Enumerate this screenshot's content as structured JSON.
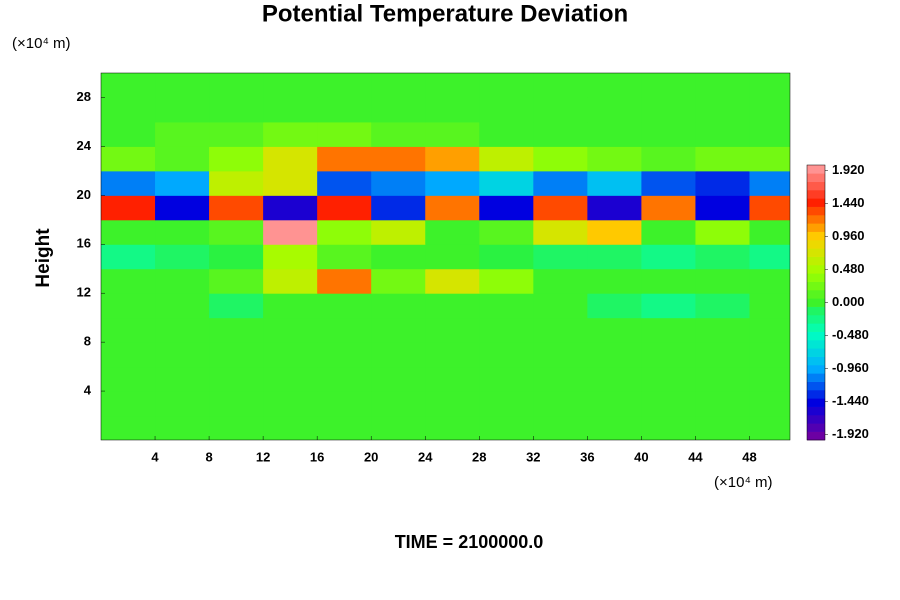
{
  "chart_data": {
    "type": "heatmap",
    "title": "Potential Temperature Deviation",
    "x_unit_label": "(×10⁴ m)",
    "y_unit_label": "(×10⁴ m)",
    "ylabel": "Height",
    "footer": "TIME = 2100000.0",
    "xlim": [
      0,
      51
    ],
    "ylim": [
      0,
      30
    ],
    "xticks": [
      4,
      8,
      12,
      16,
      20,
      24,
      28,
      32,
      36,
      40,
      44,
      48
    ],
    "yticks": [
      4,
      8,
      12,
      16,
      20,
      24,
      28
    ],
    "x": [
      2,
      6,
      10,
      14,
      18,
      22,
      26,
      30,
      34,
      38,
      42,
      46,
      50
    ],
    "y": [
      1,
      3,
      5,
      7,
      9,
      11,
      13,
      15,
      17,
      19,
      21,
      23,
      25,
      27,
      29
    ],
    "z": [
      [
        0.1,
        0.1,
        0.1,
        0.1,
        0.1,
        0.1,
        0.1,
        0.1,
        0.1,
        0.1,
        0.1,
        0.1,
        0.1
      ],
      [
        0.1,
        0.1,
        0.1,
        0.1,
        0.1,
        0.1,
        0.1,
        0.1,
        0.1,
        0.1,
        0.1,
        0.1,
        0.1
      ],
      [
        0.1,
        0.1,
        0.1,
        0.1,
        0.1,
        0.1,
        0.1,
        0.1,
        0.1,
        0.1,
        0.1,
        0.1,
        0.1
      ],
      [
        0.1,
        0.1,
        0.1,
        0.1,
        0.1,
        0.1,
        0.1,
        0.1,
        0.1,
        0.1,
        0.1,
        0.1,
        0.1
      ],
      [
        0.1,
        0.1,
        0.1,
        0.1,
        0.1,
        0.1,
        0.1,
        0.1,
        0.1,
        0.1,
        0.1,
        0.1,
        0.1
      ],
      [
        0.0,
        0.0,
        -0.2,
        0.0,
        0.0,
        0.0,
        0.0,
        0.0,
        0.0,
        -0.2,
        -0.3,
        -0.2,
        0.0
      ],
      [
        0.0,
        0.1,
        0.2,
        0.6,
        1.2,
        0.3,
        0.8,
        0.4,
        0.1,
        0.0,
        0.0,
        0.0,
        0.0
      ],
      [
        -0.3,
        -0.2,
        -0.1,
        0.5,
        0.2,
        0.1,
        0.0,
        -0.1,
        -0.2,
        -0.2,
        -0.3,
        -0.2,
        -0.3
      ],
      [
        0.0,
        0.0,
        0.2,
        2.0,
        0.4,
        0.6,
        0.1,
        0.2,
        0.8,
        1.0,
        0.1,
        0.4,
        0.0
      ],
      [
        1.5,
        -1.5,
        1.4,
        -1.6,
        1.5,
        -1.4,
        1.2,
        -1.5,
        1.4,
        -1.6,
        1.3,
        -1.5,
        1.4
      ],
      [
        -1.2,
        -1.0,
        0.6,
        0.8,
        -1.3,
        -1.2,
        -1.0,
        -0.8,
        -1.1,
        -0.9,
        -1.3,
        -1.4,
        -1.2
      ],
      [
        0.3,
        0.2,
        0.4,
        0.8,
        1.2,
        1.3,
        1.1,
        0.6,
        0.4,
        0.3,
        0.2,
        0.3,
        0.3
      ],
      [
        0.1,
        0.2,
        0.2,
        0.3,
        0.3,
        0.2,
        0.2,
        0.1,
        0.1,
        0.1,
        0.1,
        0.1,
        0.1
      ],
      [
        0.1,
        0.1,
        0.1,
        0.1,
        0.1,
        0.1,
        0.1,
        0.1,
        0.1,
        0.1,
        0.1,
        0.1,
        0.1
      ],
      [
        0.1,
        0.1,
        0.1,
        0.1,
        0.1,
        0.1,
        0.1,
        0.1,
        0.1,
        0.1,
        0.1,
        0.1,
        0.1
      ]
    ],
    "clim": [
      -2,
      2
    ],
    "colormap": [
      "#7000a0",
      "#0000e0",
      "#00b0ff",
      "#00ffc0",
      "#30f030",
      "#a0ff00",
      "#ffd000",
      "#ff2000",
      "#ff9898"
    ],
    "cticks": [
      {
        "value": 1.92,
        "label": "1.920"
      },
      {
        "value": 1.44,
        "label": "1.440"
      },
      {
        "value": 0.96,
        "label": "0.960"
      },
      {
        "value": 0.48,
        "label": "0.480"
      },
      {
        "value": 0,
        "label": "0.000"
      },
      {
        "value": -0.48,
        "label": "-0.480"
      },
      {
        "value": -0.96,
        "label": "-0.960"
      },
      {
        "value": -1.44,
        "label": "-1.440"
      },
      {
        "value": -1.92,
        "label": "-1.920"
      }
    ]
  }
}
